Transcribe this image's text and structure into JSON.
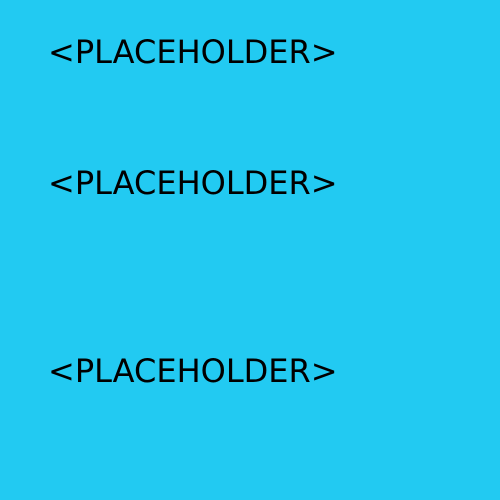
{
  "placeholders": [
    {
      "text": "<PLACEHOLDER>"
    },
    {
      "text": "<PLACEHOLDER>"
    },
    {
      "text": "<PLACEHOLDER>"
    }
  ],
  "colors": {
    "background": "#22caf2",
    "text": "#000000"
  }
}
